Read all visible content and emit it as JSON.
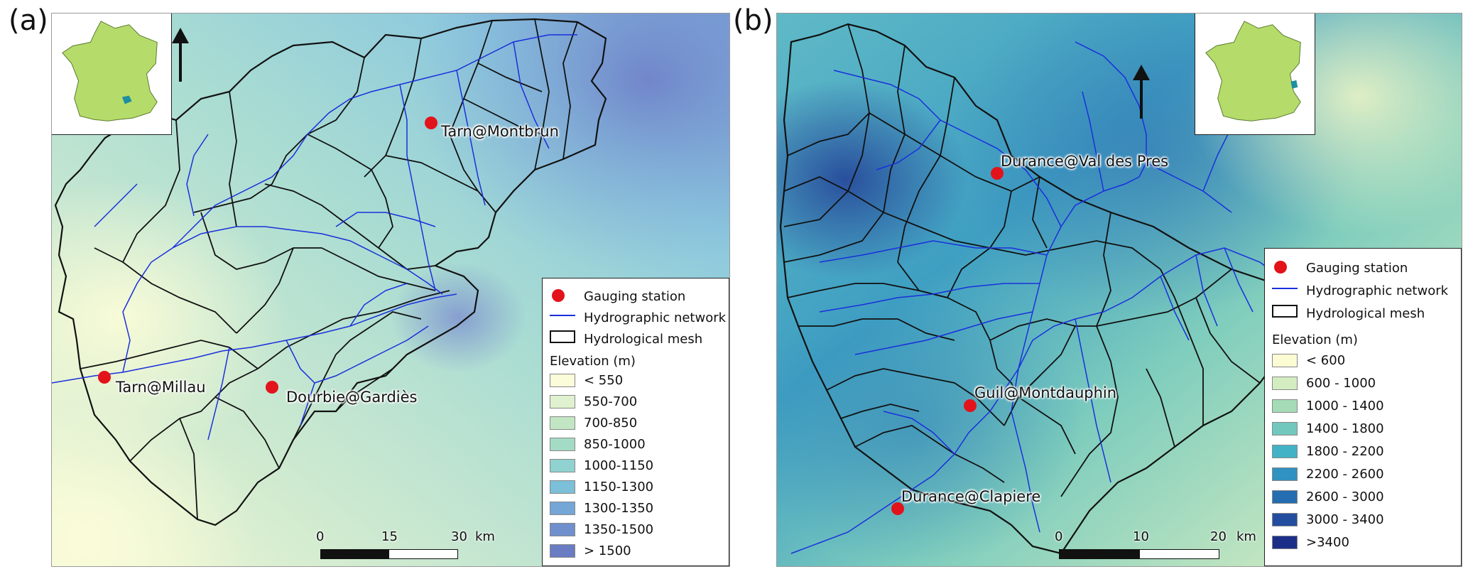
{
  "panels": [
    {
      "letter": "(a)",
      "stations": [
        "Tarn@Montbrun",
        "Tarn@Millau",
        "Dourbie@Gardiès"
      ],
      "legend": {
        "items": [
          "Gauging station",
          "Hydrographic network",
          "Hydrological mesh"
        ],
        "elevation_title": "Elevation (m)",
        "classes": [
          {
            "label": "< 550",
            "color": "#fbfcd9"
          },
          {
            "label": "550-700",
            "color": "#e0f1cf"
          },
          {
            "label": "700-850",
            "color": "#c2e6c4"
          },
          {
            "label": "850-1000",
            "color": "#a4dbc4"
          },
          {
            "label": "1000-1150",
            "color": "#8fd2cf"
          },
          {
            "label": "1150-1300",
            "color": "#7cbfd9"
          },
          {
            "label": "1300-1350",
            "color": "#74a6d6"
          },
          {
            "label": "1350-1500",
            "color": "#6f8fcd"
          },
          {
            "label": "> 1500",
            "color": "#6a7cc2"
          }
        ]
      },
      "scale": {
        "ticks": [
          "0",
          "15",
          "30",
          "km"
        ]
      }
    },
    {
      "letter": "(b)",
      "stations": [
        "Durance@Val des Pres",
        "Guil@Montdauphin",
        "Durance@Clapiere"
      ],
      "legend": {
        "items": [
          "Gauging station",
          "Hydrographic network",
          "Hydrological mesh"
        ],
        "elevation_title": "Elevation (m)",
        "classes": [
          {
            "label": "< 600",
            "color": "#fbfcd3"
          },
          {
            "label": "600 - 1000",
            "color": "#d3edc0"
          },
          {
            "label": "1000 - 1400",
            "color": "#a5dbb7"
          },
          {
            "label": "1400 - 1800",
            "color": "#72c8bd"
          },
          {
            "label": "1800 - 2200",
            "color": "#42b3c6"
          },
          {
            "label": "2200 - 2600",
            "color": "#2f92c0"
          },
          {
            "label": "2600 - 3000",
            "color": "#246db0"
          },
          {
            "label": "3000 - 3400",
            "color": "#234ea0"
          },
          {
            "label": ">3400",
            "color": "#1c2f88"
          }
        ]
      },
      "scale": {
        "ticks": [
          "0",
          "10",
          "20",
          "km"
        ]
      }
    }
  ],
  "colors": {
    "station": "#e3131b",
    "network": "#1a2fdc",
    "mesh": "#111111",
    "france": "#b5dc6a",
    "basin": "#1e8fa0"
  }
}
